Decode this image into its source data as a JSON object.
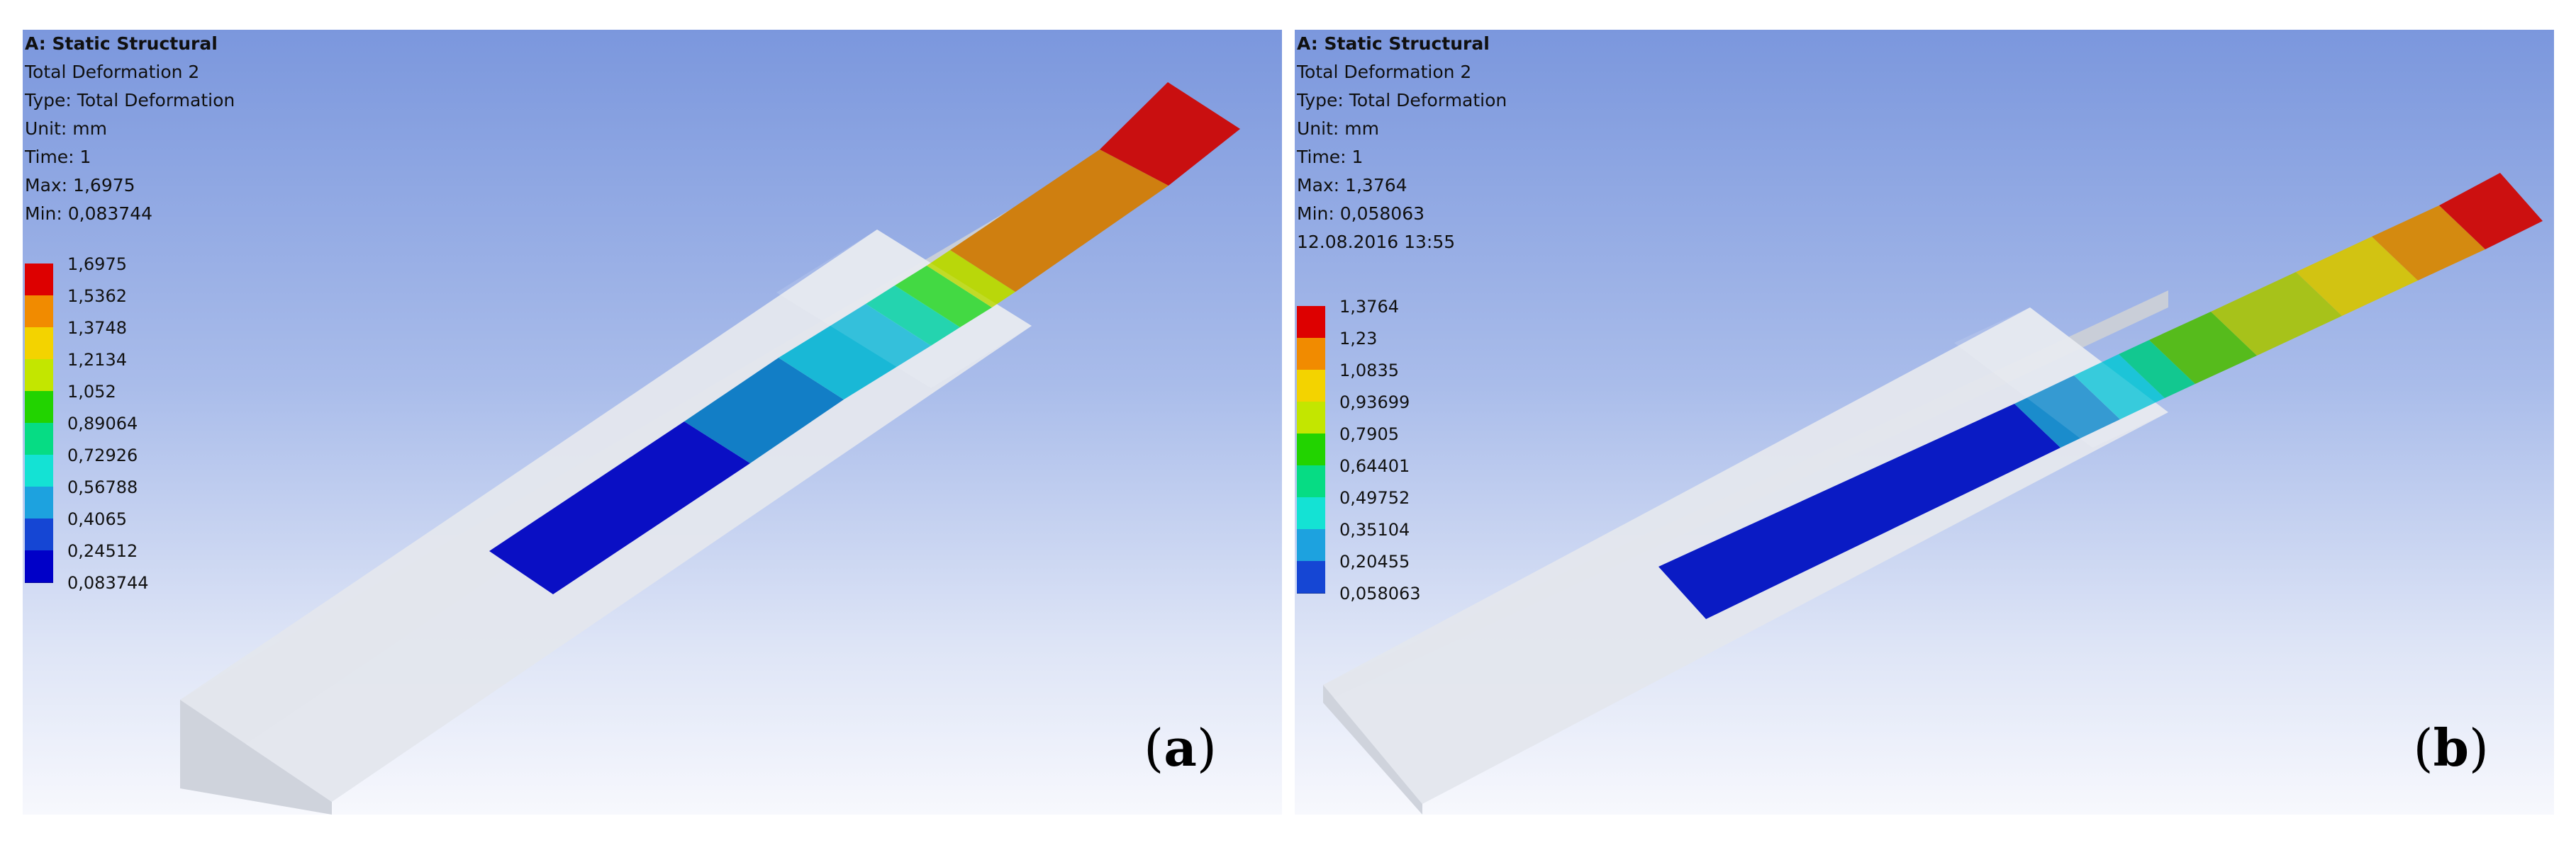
{
  "panels": [
    {
      "id": "a",
      "info": {
        "title": "A: Static Structural",
        "result": "Total Deformation 2",
        "type": "Type: Total Deformation",
        "unit": "Unit: mm",
        "time": "Time: 1",
        "max": "Max: 1,6975",
        "min": "Min: 0,083744"
      },
      "legend": [
        "1,6975",
        "1,5362",
        "1,3748",
        "1,2134",
        "1,052",
        "0,89064",
        "0,72926",
        "0,56788",
        "0,4065",
        "0,24512",
        "0,083744"
      ],
      "label": "a"
    },
    {
      "id": "b",
      "info": {
        "title": "A: Static Structural",
        "result": "Total Deformation 2",
        "type": "Type: Total Deformation",
        "unit": "Unit: mm",
        "time": "Time: 1",
        "max": "Max: 1,3764",
        "min": "Min: 0,058063",
        "date": "12.08.2016 13:55"
      },
      "legend": [
        "1,3764",
        "1,23",
        "1,0835",
        "0,93699",
        "0,7905",
        "0,64401",
        "0,49752",
        "0,35104",
        "0,20455",
        "0,058063"
      ],
      "label": "b"
    }
  ],
  "colors": {
    "contour": [
      "#dd0000",
      "#f18b00",
      "#f3d300",
      "#c3e600",
      "#22d300",
      "#06dc84",
      "#14e2d4",
      "#1da2df",
      "#1546d4",
      "#0000c8"
    ],
    "plate": "#e0e4ec",
    "plate_edge": "#c8ccd6"
  }
}
